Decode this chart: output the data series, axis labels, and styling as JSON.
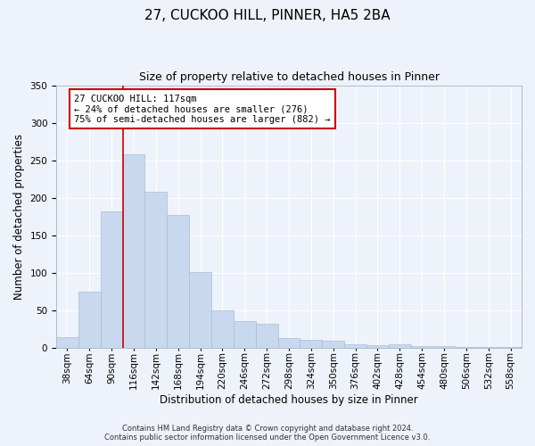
{
  "title": "27, CUCKOO HILL, PINNER, HA5 2BA",
  "subtitle": "Size of property relative to detached houses in Pinner",
  "xlabel": "Distribution of detached houses by size in Pinner",
  "ylabel": "Number of detached properties",
  "bar_labels": [
    "38sqm",
    "64sqm",
    "90sqm",
    "116sqm",
    "142sqm",
    "168sqm",
    "194sqm",
    "220sqm",
    "246sqm",
    "272sqm",
    "298sqm",
    "324sqm",
    "350sqm",
    "376sqm",
    "402sqm",
    "428sqm",
    "454sqm",
    "480sqm",
    "506sqm",
    "532sqm",
    "558sqm"
  ],
  "bar_values": [
    15,
    75,
    182,
    258,
    208,
    177,
    101,
    50,
    36,
    32,
    13,
    11,
    10,
    5,
    4,
    5,
    2,
    2,
    1,
    1,
    1
  ],
  "bar_color": "#c8d8ee",
  "bar_edge_color": "#a8bcd8",
  "background_color": "#eef2fa",
  "grid_color": "#ffffff",
  "vline_color": "#cc0000",
  "vline_x_index": 3,
  "annotation_text": "27 CUCKOO HILL: 117sqm\n← 24% of detached houses are smaller (276)\n75% of semi-detached houses are larger (882) →",
  "annotation_box_color": "#cc0000",
  "ylim": [
    0,
    350
  ],
  "yticks": [
    0,
    50,
    100,
    150,
    200,
    250,
    300,
    350
  ],
  "title_fontsize": 11,
  "subtitle_fontsize": 9,
  "xlabel_fontsize": 8.5,
  "ylabel_fontsize": 8.5,
  "tick_fontsize": 7.5,
  "annotation_fontsize": 7.5,
  "footer_line1": "Contains HM Land Registry data © Crown copyright and database right 2024.",
  "footer_line2": "Contains public sector information licensed under the Open Government Licence v3.0.",
  "footer_fontsize": 6.0
}
